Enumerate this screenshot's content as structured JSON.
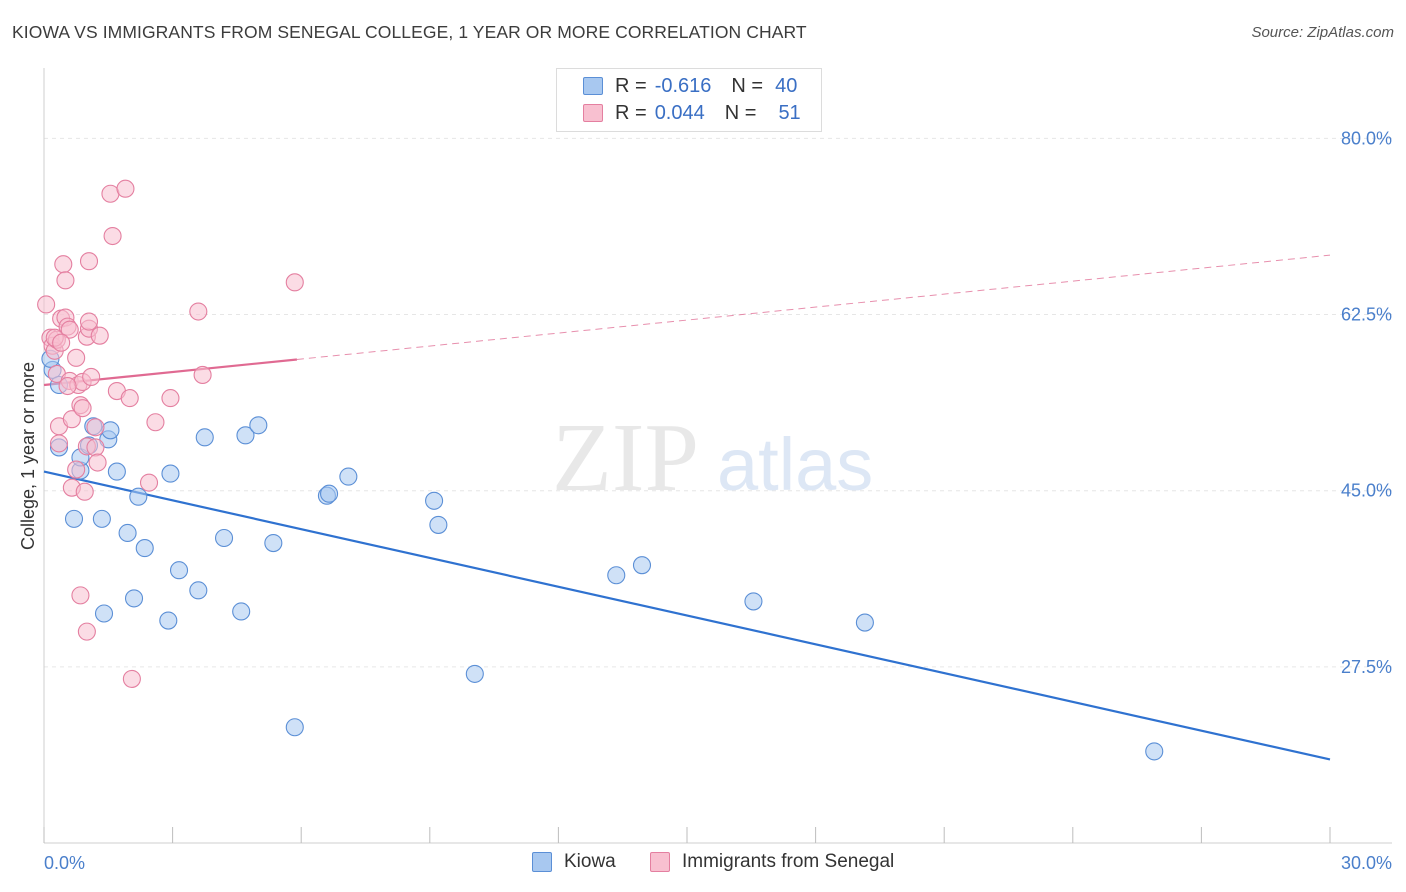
{
  "title": "KIOWA VS IMMIGRANTS FROM SENEGAL COLLEGE, 1 YEAR OR MORE CORRELATION CHART",
  "source": "Source: ZipAtlas.com",
  "watermark": {
    "zip": "ZIP",
    "atlas": "atlas"
  },
  "legend": {
    "rows": [
      {
        "r_label": "R =",
        "r_value": "-0.616",
        "n_label": "N =",
        "n_value": "40",
        "color": "#a8c8f0",
        "border": "#5b8fd6"
      },
      {
        "r_label": "R =",
        "r_value": "0.044",
        "n_label": "N =",
        "n_value": "51",
        "color": "#f8c0d0",
        "border": "#e47fa0"
      }
    ]
  },
  "bottom_legend": [
    {
      "label": "Kiowa",
      "color": "#a8c8f0",
      "border": "#5b8fd6"
    },
    {
      "label": "Immigrants from Senegal",
      "color": "#f8c0d0",
      "border": "#e47fa0"
    }
  ],
  "chart_data": {
    "type": "scatter",
    "ylabel": "College, 1 year or more",
    "xlim": [
      0,
      30
    ],
    "ylim": [
      10,
      86
    ],
    "x_tick_labels": [
      {
        "value": 0,
        "label": "0.0%"
      },
      {
        "value": 30,
        "label": "30.0%"
      }
    ],
    "y_ticks": [
      {
        "value": 80,
        "label": "80.0%"
      },
      {
        "value": 62.5,
        "label": "62.5%"
      },
      {
        "value": 45,
        "label": "45.0%"
      },
      {
        "value": 27.5,
        "label": "27.5%"
      }
    ],
    "x_minor_ticks": [
      0,
      3,
      6,
      9,
      12,
      15,
      18,
      21,
      24,
      27,
      30
    ],
    "series": [
      {
        "name": "Kiowa",
        "color": "#a8c8f0",
        "stroke": "#5b8fd6",
        "line_color": "#2f72d0",
        "trend": {
          "x0": 0,
          "y0": 46.9,
          "x1": 30,
          "y1": 18.3,
          "dashed_from": null
        },
        "points": [
          [
            0.2,
            57
          ],
          [
            0.35,
            55.5
          ],
          [
            0.35,
            49.3
          ],
          [
            0.7,
            42.2
          ],
          [
            0.85,
            47
          ],
          [
            0.85,
            48.3
          ],
          [
            1.05,
            49.5
          ],
          [
            1.15,
            51.4
          ],
          [
            1.35,
            42.2
          ],
          [
            1.4,
            32.8
          ],
          [
            1.5,
            50.1
          ],
          [
            1.55,
            51
          ],
          [
            1.7,
            46.9
          ],
          [
            1.95,
            40.8
          ],
          [
            2.1,
            34.3
          ],
          [
            2.2,
            44.4
          ],
          [
            2.35,
            39.3
          ],
          [
            2.9,
            32.1
          ],
          [
            2.95,
            46.7
          ],
          [
            3.15,
            37.1
          ],
          [
            3.6,
            35.1
          ],
          [
            3.75,
            50.3
          ],
          [
            4.2,
            40.3
          ],
          [
            4.6,
            33
          ],
          [
            4.7,
            50.5
          ],
          [
            5.0,
            51.5
          ],
          [
            5.35,
            39.8
          ],
          [
            5.85,
            21.5
          ],
          [
            6.6,
            44.5
          ],
          [
            6.65,
            44.7
          ],
          [
            7.1,
            46.4
          ],
          [
            9.1,
            44
          ],
          [
            9.2,
            41.6
          ],
          [
            10.05,
            26.8
          ],
          [
            13.35,
            36.6
          ],
          [
            13.95,
            37.6
          ],
          [
            16.55,
            34
          ],
          [
            19.15,
            31.9
          ],
          [
            25.9,
            19.1
          ],
          [
            0.15,
            58.1
          ]
        ]
      },
      {
        "name": "Immigrants from Senegal",
        "color": "#f8c0d0",
        "stroke": "#e47fa0",
        "line_color": "#e06a92",
        "trend": {
          "x0": 0,
          "y0": 55.5,
          "x1": 30,
          "y1": 68.4,
          "dashed_from": 5.9
        },
        "points": [
          [
            0.05,
            63.5
          ],
          [
            0.15,
            60.2
          ],
          [
            0.2,
            59.4
          ],
          [
            0.25,
            58.9
          ],
          [
            0.3,
            60
          ],
          [
            0.3,
            56.6
          ],
          [
            0.35,
            51.4
          ],
          [
            0.35,
            49.7
          ],
          [
            0.4,
            62.1
          ],
          [
            0.45,
            67.5
          ],
          [
            0.5,
            65.9
          ],
          [
            0.5,
            62.2
          ],
          [
            0.55,
            61.3
          ],
          [
            0.6,
            61
          ],
          [
            0.6,
            55.9
          ],
          [
            0.65,
            45.3
          ],
          [
            0.65,
            52.1
          ],
          [
            0.75,
            58.2
          ],
          [
            0.75,
            47.1
          ],
          [
            0.8,
            55.5
          ],
          [
            0.85,
            53.5
          ],
          [
            0.85,
            34.6
          ],
          [
            0.9,
            53.2
          ],
          [
            0.9,
            55.8
          ],
          [
            0.95,
            44.9
          ],
          [
            1.0,
            60.3
          ],
          [
            1.0,
            49.4
          ],
          [
            1.0,
            31
          ],
          [
            1.05,
            61.1
          ],
          [
            1.05,
            61.8
          ],
          [
            1.05,
            67.8
          ],
          [
            1.1,
            56.3
          ],
          [
            1.2,
            51.3
          ],
          [
            1.2,
            49.3
          ],
          [
            1.25,
            47.8
          ],
          [
            1.3,
            60.4
          ],
          [
            1.55,
            74.5
          ],
          [
            1.6,
            70.3
          ],
          [
            1.7,
            54.9
          ],
          [
            1.9,
            75
          ],
          [
            2.0,
            54.2
          ],
          [
            2.05,
            26.3
          ],
          [
            2.45,
            45.8
          ],
          [
            2.6,
            51.8
          ],
          [
            2.95,
            54.2
          ],
          [
            3.6,
            62.8
          ],
          [
            3.7,
            56.5
          ],
          [
            5.85,
            65.7
          ],
          [
            0.25,
            60.2
          ],
          [
            0.4,
            59.7
          ],
          [
            0.55,
            55.4
          ]
        ]
      }
    ]
  }
}
